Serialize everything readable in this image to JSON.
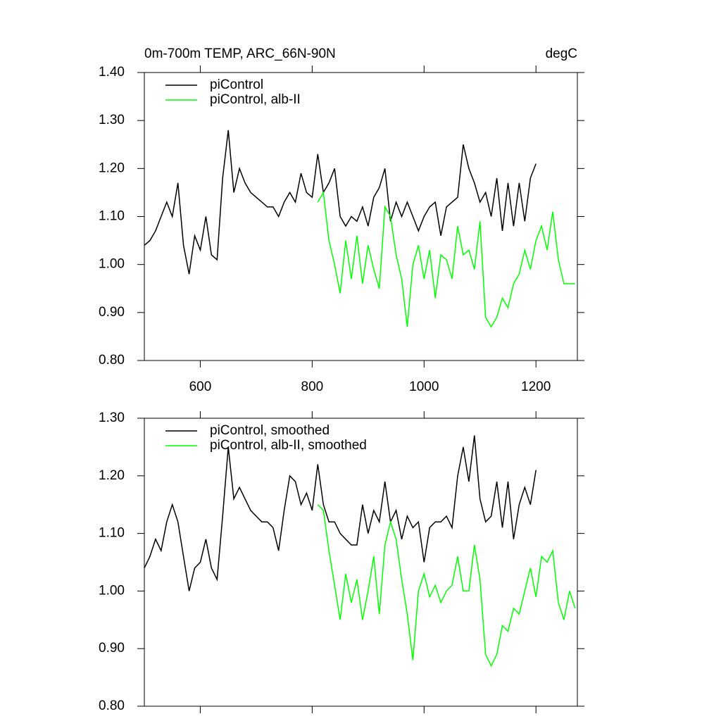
{
  "chart_data": [
    {
      "type": "line",
      "title": "0m-700m TEMP, ARC_66N-90N",
      "units": "degC",
      "xlim": [
        500,
        1274
      ],
      "xticks": [
        600,
        800,
        1000,
        1200
      ],
      "ylim": [
        0.8,
        1.4
      ],
      "yticks": [
        {
          "value": 0.8,
          "label": "0.80"
        },
        {
          "value": 0.9,
          "label": "0.90"
        },
        {
          "value": 1.0,
          "label": "1.00"
        },
        {
          "value": 1.1,
          "label": "1.10"
        },
        {
          "value": 1.2,
          "label": "1.20"
        },
        {
          "value": 1.3,
          "label": "1.30"
        },
        {
          "value": 1.4,
          "label": "1.40"
        }
      ],
      "series": [
        {
          "name": "piControl",
          "color": "#000000",
          "x": [
            500,
            510,
            520,
            530,
            540,
            550,
            560,
            570,
            580,
            590,
            600,
            610,
            620,
            630,
            640,
            650,
            660,
            670,
            680,
            690,
            700,
            710,
            720,
            730,
            740,
            750,
            760,
            770,
            780,
            790,
            800,
            810,
            820,
            830,
            840,
            850,
            860,
            870,
            880,
            890,
            900,
            910,
            920,
            930,
            940,
            950,
            960,
            970,
            980,
            990,
            1000,
            1010,
            1020,
            1030,
            1040,
            1050,
            1060,
            1070,
            1080,
            1090,
            1100,
            1110,
            1120,
            1130,
            1140,
            1150,
            1160,
            1170,
            1180,
            1190,
            1200
          ],
          "values": [
            1.04,
            1.05,
            1.07,
            1.1,
            1.13,
            1.1,
            1.17,
            1.04,
            0.98,
            1.06,
            1.03,
            1.1,
            1.02,
            1.01,
            1.18,
            1.28,
            1.15,
            1.2,
            1.17,
            1.15,
            1.14,
            1.13,
            1.12,
            1.12,
            1.1,
            1.13,
            1.15,
            1.13,
            1.19,
            1.15,
            1.14,
            1.23,
            1.15,
            1.17,
            1.2,
            1.1,
            1.08,
            1.1,
            1.09,
            1.12,
            1.08,
            1.14,
            1.16,
            1.2,
            1.09,
            1.13,
            1.1,
            1.13,
            1.1,
            1.07,
            1.1,
            1.12,
            1.13,
            1.06,
            1.12,
            1.13,
            1.14,
            1.25,
            1.2,
            1.17,
            1.13,
            1.15,
            1.1,
            1.18,
            1.07,
            1.17,
            1.08,
            1.17,
            1.09,
            1.18,
            1.21
          ]
        },
        {
          "name": "piControl, alb-II",
          "color": "#00ff00",
          "x": [
            810,
            820,
            830,
            840,
            850,
            860,
            870,
            880,
            890,
            900,
            910,
            920,
            930,
            940,
            950,
            960,
            970,
            980,
            990,
            1000,
            1010,
            1020,
            1030,
            1040,
            1050,
            1060,
            1070,
            1080,
            1090,
            1100,
            1110,
            1120,
            1130,
            1140,
            1150,
            1160,
            1170,
            1180,
            1190,
            1200,
            1210,
            1220,
            1230,
            1240,
            1250,
            1260,
            1270
          ],
          "values": [
            1.13,
            1.15,
            1.05,
            1.0,
            0.94,
            1.05,
            0.97,
            1.06,
            0.96,
            1.04,
            0.99,
            0.95,
            1.12,
            1.1,
            1.02,
            0.97,
            0.87,
            1.0,
            1.04,
            0.97,
            1.03,
            0.93,
            1.02,
            1.01,
            0.97,
            1.08,
            1.02,
            1.03,
            0.99,
            1.09,
            0.89,
            0.87,
            0.89,
            0.93,
            0.91,
            0.96,
            0.98,
            1.03,
            0.99,
            1.05,
            1.08,
            1.03,
            1.11,
            1.01,
            0.96,
            0.96,
            0.96
          ]
        }
      ]
    },
    {
      "type": "line",
      "xlim": [
        500,
        1274
      ],
      "ylim": [
        0.8,
        1.3
      ],
      "yticks": [
        {
          "value": 0.8,
          "label": "0.80"
        },
        {
          "value": 0.9,
          "label": "0.90"
        },
        {
          "value": 1.0,
          "label": "1.00"
        },
        {
          "value": 1.1,
          "label": "1.10"
        },
        {
          "value": 1.2,
          "label": "1.20"
        },
        {
          "value": 1.3,
          "label": "1.30"
        }
      ],
      "series": [
        {
          "name": "piControl, smoothed",
          "color": "#000000",
          "x": [
            500,
            510,
            520,
            530,
            540,
            550,
            560,
            570,
            580,
            590,
            600,
            610,
            620,
            630,
            640,
            650,
            660,
            670,
            680,
            690,
            700,
            710,
            720,
            730,
            740,
            750,
            760,
            770,
            780,
            790,
            800,
            810,
            820,
            830,
            840,
            850,
            860,
            870,
            880,
            890,
            900,
            910,
            920,
            930,
            940,
            950,
            960,
            970,
            980,
            990,
            1000,
            1010,
            1020,
            1030,
            1040,
            1050,
            1060,
            1070,
            1080,
            1090,
            1100,
            1110,
            1120,
            1130,
            1140,
            1150,
            1160,
            1170,
            1180,
            1190,
            1200
          ],
          "values": [
            1.04,
            1.06,
            1.09,
            1.07,
            1.12,
            1.15,
            1.12,
            1.06,
            1.0,
            1.04,
            1.05,
            1.09,
            1.04,
            1.02,
            1.13,
            1.25,
            1.16,
            1.18,
            1.16,
            1.14,
            1.13,
            1.12,
            1.12,
            1.11,
            1.07,
            1.14,
            1.2,
            1.19,
            1.15,
            1.17,
            1.14,
            1.22,
            1.15,
            1.12,
            1.12,
            1.1,
            1.09,
            1.08,
            1.08,
            1.15,
            1.1,
            1.14,
            1.12,
            1.19,
            1.12,
            1.14,
            1.09,
            1.13,
            1.11,
            1.12,
            1.05,
            1.11,
            1.12,
            1.12,
            1.13,
            1.11,
            1.2,
            1.25,
            1.19,
            1.27,
            1.16,
            1.12,
            1.13,
            1.19,
            1.11,
            1.19,
            1.09,
            1.15,
            1.18,
            1.15,
            1.21
          ]
        },
        {
          "name": "piControl, alb-II, smoothed",
          "color": "#00ff00",
          "x": [
            810,
            820,
            830,
            840,
            850,
            860,
            870,
            880,
            890,
            900,
            910,
            920,
            930,
            940,
            950,
            960,
            970,
            980,
            990,
            1000,
            1010,
            1020,
            1030,
            1040,
            1050,
            1060,
            1070,
            1080,
            1090,
            1100,
            1110,
            1120,
            1130,
            1140,
            1150,
            1160,
            1170,
            1180,
            1190,
            1200,
            1210,
            1220,
            1230,
            1240,
            1250,
            1260,
            1270
          ],
          "values": [
            1.15,
            1.14,
            1.07,
            1.01,
            0.95,
            1.03,
            0.98,
            1.02,
            0.95,
            1.0,
            1.06,
            0.96,
            1.08,
            1.12,
            1.09,
            1.02,
            0.96,
            0.88,
            1.0,
            1.03,
            0.99,
            1.01,
            0.98,
            1.0,
            1.01,
            1.06,
            1.0,
            1.0,
            1.08,
            1.02,
            0.89,
            0.87,
            0.89,
            0.94,
            0.93,
            0.97,
            0.96,
            1.0,
            1.04,
            0.99,
            1.06,
            1.05,
            1.07,
            0.98,
            0.95,
            1.0,
            0.97
          ]
        }
      ]
    }
  ]
}
